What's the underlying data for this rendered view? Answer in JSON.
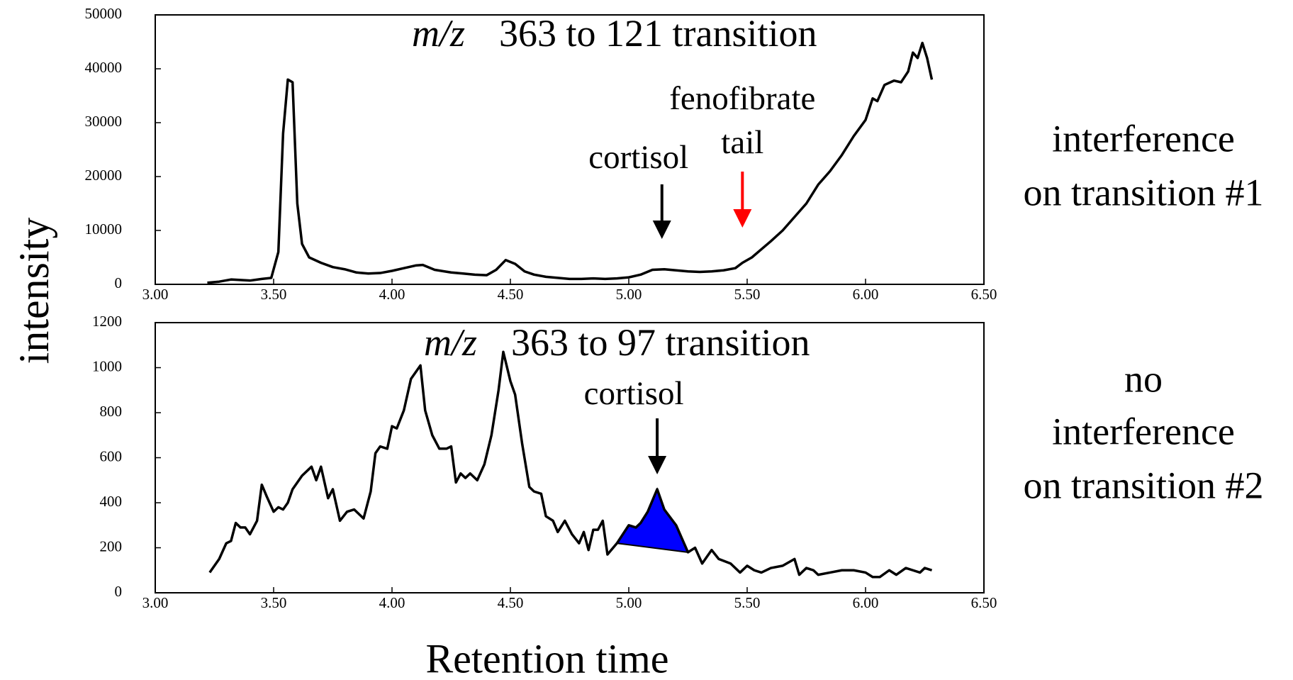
{
  "axis_labels": {
    "y": "intensity",
    "x": "Retention time"
  },
  "chart_data": [
    {
      "type": "line",
      "title": [
        "m/z",
        "363 to 121 transition"
      ],
      "color": "#000000",
      "x": [
        3.22,
        3.27,
        3.32,
        3.36,
        3.4,
        3.45,
        3.49,
        3.52,
        3.54,
        3.56,
        3.58,
        3.6,
        3.62,
        3.65,
        3.7,
        3.75,
        3.8,
        3.85,
        3.9,
        3.95,
        4.0,
        4.05,
        4.1,
        4.13,
        4.18,
        4.25,
        4.3,
        4.35,
        4.4,
        4.44,
        4.48,
        4.52,
        4.56,
        4.6,
        4.65,
        4.7,
        4.75,
        4.8,
        4.85,
        4.9,
        4.95,
        5.0,
        5.05,
        5.1,
        5.15,
        5.2,
        5.25,
        5.3,
        5.35,
        5.4,
        5.45,
        5.48,
        5.52,
        5.56,
        5.6,
        5.65,
        5.7,
        5.75,
        5.8,
        5.85,
        5.9,
        5.95,
        6.0,
        6.03,
        6.05,
        6.08,
        6.12,
        6.15,
        6.18,
        6.2,
        6.22,
        6.24,
        6.26,
        6.28
      ],
      "values": [
        300,
        500,
        900,
        800,
        700,
        1000,
        1200,
        6000,
        28000,
        38000,
        37500,
        15000,
        7500,
        5000,
        4000,
        3200,
        2800,
        2200,
        2000,
        2100,
        2500,
        3000,
        3500,
        3600,
        2700,
        2200,
        2000,
        1800,
        1700,
        2700,
        4500,
        3800,
        2400,
        1800,
        1400,
        1200,
        1000,
        1000,
        1100,
        1000,
        1100,
        1300,
        1800,
        2700,
        2800,
        2600,
        2400,
        2300,
        2400,
        2600,
        3000,
        4000,
        5000,
        6500,
        8000,
        10000,
        12500,
        15000,
        18500,
        21000,
        24000,
        27500,
        30500,
        34500,
        34000,
        37000,
        37800,
        37500,
        39500,
        43000,
        42000,
        44800,
        42000,
        38000
      ],
      "xlim": [
        3,
        6.5
      ],
      "xticks": [
        {
          "value": 3,
          "label": "3.00"
        },
        {
          "value": 3.5,
          "label": "3.50"
        },
        {
          "value": 4,
          "label": "4.00"
        },
        {
          "value": 4.5,
          "label": "4.50"
        },
        {
          "value": 5,
          "label": "5.00"
        },
        {
          "value": 5.5,
          "label": "5.50"
        },
        {
          "value": 6,
          "label": "6.00"
        },
        {
          "value": 6.5,
          "label": "6.50"
        }
      ],
      "ylim": [
        0,
        50000
      ],
      "yticks": [
        0,
        10000,
        20000,
        30000,
        40000,
        50000
      ],
      "annotations": [
        {
          "lines": [
            "cortisol"
          ],
          "x": 5.14,
          "color": "#000000"
        },
        {
          "lines": [
            "fenofibrate",
            "tail"
          ],
          "x": 5.48,
          "color": "#ff0000"
        }
      ],
      "side_note": [
        "interference",
        "on transition #1"
      ]
    },
    {
      "type": "line",
      "title": [
        "m/z",
        "363 to 97 transition"
      ],
      "color": "#000000",
      "x": [
        3.23,
        3.27,
        3.3,
        3.32,
        3.34,
        3.36,
        3.38,
        3.4,
        3.43,
        3.45,
        3.47,
        3.5,
        3.52,
        3.54,
        3.56,
        3.58,
        3.62,
        3.66,
        3.68,
        3.7,
        3.73,
        3.75,
        3.78,
        3.81,
        3.84,
        3.88,
        3.91,
        3.93,
        3.95,
        3.98,
        4.0,
        4.02,
        4.05,
        4.08,
        4.12,
        4.14,
        4.17,
        4.2,
        4.23,
        4.25,
        4.27,
        4.29,
        4.31,
        4.33,
        4.36,
        4.39,
        4.42,
        4.45,
        4.47,
        4.5,
        4.52,
        4.55,
        4.58,
        4.6,
        4.63,
        4.65,
        4.68,
        4.7,
        4.73,
        4.76,
        4.79,
        4.81,
        4.83,
        4.85,
        4.87,
        4.89,
        4.91,
        4.95,
        5.0,
        5.03,
        5.05,
        5.08,
        5.12,
        5.15,
        5.2,
        5.25,
        5.28,
        5.31,
        5.35,
        5.38,
        5.43,
        5.47,
        5.5,
        5.53,
        5.56,
        5.6,
        5.65,
        5.7,
        5.72,
        5.75,
        5.78,
        5.8,
        5.85,
        5.9,
        5.95,
        6.0,
        6.03,
        6.06,
        6.1,
        6.13,
        6.17,
        6.2,
        6.23,
        6.25,
        6.28
      ],
      "values": [
        90,
        150,
        220,
        230,
        310,
        290,
        290,
        260,
        320,
        480,
        430,
        360,
        380,
        370,
        400,
        460,
        520,
        560,
        500,
        560,
        420,
        460,
        320,
        360,
        370,
        330,
        450,
        620,
        650,
        640,
        740,
        730,
        810,
        950,
        1010,
        810,
        700,
        640,
        640,
        650,
        490,
        530,
        510,
        530,
        500,
        570,
        700,
        900,
        1070,
        940,
        880,
        660,
        470,
        450,
        440,
        340,
        320,
        270,
        320,
        260,
        220,
        270,
        190,
        280,
        280,
        320,
        170,
        220,
        300,
        290,
        310,
        360,
        460,
        370,
        300,
        180,
        200,
        130,
        190,
        150,
        130,
        90,
        120,
        100,
        90,
        110,
        120,
        150,
        80,
        110,
        100,
        80,
        90,
        100,
        100,
        90,
        70,
        70,
        100,
        80,
        110,
        100,
        90,
        110,
        100
      ],
      "xlim": [
        3,
        6.5
      ],
      "xticks": [
        {
          "value": 3,
          "label": "3.00"
        },
        {
          "value": 3.5,
          "label": "3.50"
        },
        {
          "value": 4,
          "label": "4.00"
        },
        {
          "value": 4.5,
          "label": "4.50"
        },
        {
          "value": 5,
          "label": "5.00"
        },
        {
          "value": 5.5,
          "label": "5.50"
        },
        {
          "value": 6,
          "label": "6.00"
        },
        {
          "value": 6.5,
          "label": "6.50"
        }
      ],
      "ylim": [
        0,
        1200
      ],
      "yticks": [
        0,
        200,
        400,
        600,
        800,
        1000,
        1200
      ],
      "shaded": {
        "from": 4.95,
        "to": 5.25,
        "color": "#0000ff"
      },
      "annotations": [
        {
          "lines": [
            "cortisol"
          ],
          "x": 5.12,
          "color": "#000000"
        }
      ],
      "side_note": [
        "no",
        "interference",
        "on transition #2"
      ]
    }
  ]
}
